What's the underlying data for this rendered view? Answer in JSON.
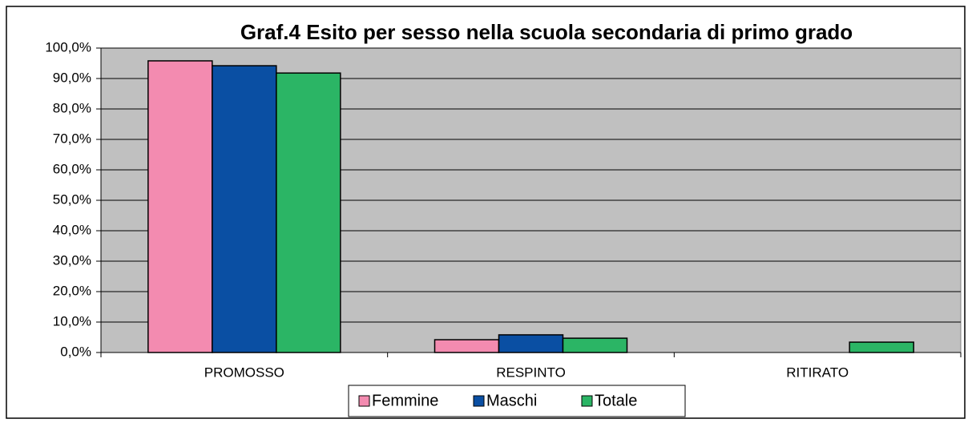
{
  "chart_data": {
    "type": "bar",
    "title": "Graf.4 Esito per sesso nella scuola secondaria di primo grado",
    "categories": [
      "PROMOSSO",
      "RESPINTO",
      "RITIRATO"
    ],
    "series": [
      {
        "name": "Femmine",
        "color": "#f38bb0",
        "values": [
          95.8,
          4.2,
          0
        ]
      },
      {
        "name": "Maschi",
        "color": "#0a4fa3",
        "values": [
          94.2,
          5.8,
          0
        ]
      },
      {
        "name": "Totale",
        "color": "#2bb565",
        "values": [
          91.8,
          4.7,
          3.4
        ]
      }
    ],
    "ylim": [
      0,
      100
    ],
    "yticks": [
      {
        "value": 0,
        "label": "0,0%"
      },
      {
        "value": 10,
        "label": "10,0%"
      },
      {
        "value": 20,
        "label": "20,0%"
      },
      {
        "value": 30,
        "label": "30,0%"
      },
      {
        "value": 40,
        "label": "40,0%"
      },
      {
        "value": 50,
        "label": "50,0%"
      },
      {
        "value": 60,
        "label": "60,0%"
      },
      {
        "value": 70,
        "label": "70,0%"
      },
      {
        "value": 80,
        "label": "80,0%"
      },
      {
        "value": 90,
        "label": "90,0%"
      },
      {
        "value": 100,
        "label": "100,0%"
      }
    ],
    "grid": true,
    "legend": "bottom"
  }
}
